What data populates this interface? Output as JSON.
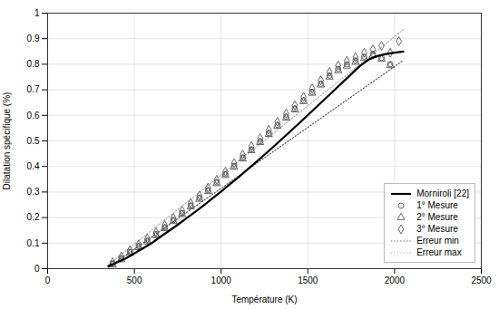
{
  "chart_data": {
    "type": "line",
    "title": "",
    "xlabel": "Température (K)",
    "ylabel": "Dilatation spécifique (%)",
    "xlim": [
      0,
      2500
    ],
    "ylim": [
      0,
      1
    ],
    "xticks": [
      0,
      500,
      1000,
      1500,
      2000,
      2500
    ],
    "yticks": [
      0,
      0.1,
      0.2,
      0.3,
      0.4,
      0.5,
      0.6,
      0.7,
      0.8,
      0.9,
      1
    ],
    "grid": true,
    "legend": "lower right",
    "series": [
      {
        "name": "Morniroli [22]",
        "type": "line",
        "line_style": "solid",
        "color": "#000000",
        "x": [
          350,
          400,
          450,
          500,
          550,
          600,
          650,
          700,
          750,
          800,
          850,
          900,
          950,
          1000,
          1050,
          1100,
          1150,
          1200,
          1250,
          1300,
          1350,
          1400,
          1450,
          1500,
          1550,
          1600,
          1650,
          1700,
          1750,
          1800,
          1850,
          1900,
          1950,
          2000,
          2050
        ],
        "values": [
          0.01,
          0.025,
          0.04,
          0.06,
          0.08,
          0.1,
          0.125,
          0.148,
          0.172,
          0.197,
          0.222,
          0.248,
          0.275,
          0.302,
          0.33,
          0.358,
          0.387,
          0.416,
          0.446,
          0.476,
          0.507,
          0.538,
          0.569,
          0.601,
          0.633,
          0.665,
          0.697,
          0.729,
          0.761,
          0.793,
          0.818,
          0.832,
          0.84,
          0.845,
          0.85
        ]
      },
      {
        "name": "1° Mesure",
        "type": "scatter",
        "marker": "circle",
        "color": "#555555",
        "x": [
          375,
          425,
          475,
          525,
          575,
          625,
          675,
          725,
          775,
          825,
          875,
          925,
          975,
          1025,
          1075,
          1125,
          1175,
          1225,
          1275,
          1325,
          1375,
          1425,
          1475,
          1525,
          1575,
          1625,
          1675,
          1725,
          1775,
          1825,
          1875,
          1925,
          1975
        ],
        "values": [
          0.02,
          0.04,
          0.065,
          0.088,
          0.11,
          0.135,
          0.162,
          0.19,
          0.218,
          0.247,
          0.277,
          0.307,
          0.338,
          0.37,
          0.402,
          0.435,
          0.467,
          0.499,
          0.531,
          0.563,
          0.595,
          0.627,
          0.659,
          0.692,
          0.724,
          0.756,
          0.782,
          0.8,
          0.815,
          0.83,
          0.84,
          0.825,
          0.8
        ]
      },
      {
        "name": "2° Mesure",
        "type": "scatter",
        "marker": "triangle",
        "color": "#555555",
        "x": [
          375,
          425,
          475,
          525,
          575,
          625,
          675,
          725,
          775,
          825,
          875,
          925,
          975,
          1025,
          1075,
          1125,
          1175,
          1225,
          1275,
          1325,
          1375,
          1425,
          1475,
          1525,
          1575,
          1625,
          1675,
          1725,
          1775,
          1825,
          1875,
          1925,
          1975
        ],
        "values": [
          0.015,
          0.035,
          0.06,
          0.083,
          0.105,
          0.13,
          0.157,
          0.185,
          0.213,
          0.242,
          0.272,
          0.302,
          0.333,
          0.365,
          0.397,
          0.43,
          0.462,
          0.494,
          0.526,
          0.558,
          0.59,
          0.622,
          0.654,
          0.687,
          0.719,
          0.75,
          0.775,
          0.793,
          0.808,
          0.823,
          0.835,
          0.82,
          0.795
        ]
      },
      {
        "name": "3° Mesure",
        "type": "scatter",
        "marker": "diamond",
        "color": "#555555",
        "x": [
          375,
          425,
          475,
          525,
          575,
          625,
          675,
          725,
          775,
          825,
          875,
          925,
          975,
          1025,
          1075,
          1125,
          1175,
          1225,
          1275,
          1325,
          1375,
          1425,
          1475,
          1525,
          1575,
          1625,
          1675,
          1725,
          1775,
          1825,
          1875,
          1925,
          1975,
          2025
        ],
        "values": [
          0.025,
          0.048,
          0.072,
          0.095,
          0.118,
          0.143,
          0.17,
          0.198,
          0.227,
          0.256,
          0.286,
          0.317,
          0.348,
          0.38,
          0.413,
          0.446,
          0.479,
          0.511,
          0.543,
          0.575,
          0.607,
          0.639,
          0.672,
          0.705,
          0.737,
          0.77,
          0.795,
          0.813,
          0.828,
          0.845,
          0.858,
          0.872,
          0.845,
          0.89
        ]
      },
      {
        "name": "Erreur min",
        "type": "line",
        "line_style": "dotted",
        "color": "#555555",
        "x": [
          350,
          2050
        ],
        "values": [
          0.005,
          0.815
        ]
      },
      {
        "name": "Erreur max",
        "type": "line",
        "line_style": "dotted",
        "color": "#aaaaaa",
        "x": [
          350,
          2050
        ],
        "values": [
          0.015,
          0.935
        ]
      }
    ]
  }
}
